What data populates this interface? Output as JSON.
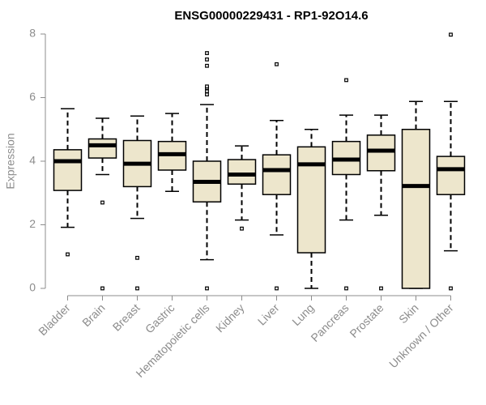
{
  "chart_data": {
    "type": "boxplot",
    "title": "ENSG00000229431 - RP1-92O14.6",
    "xlabel": "",
    "ylabel": "Expression",
    "ylim": [
      0,
      8
    ],
    "yticks": [
      0,
      2,
      4,
      6,
      8
    ],
    "colors": {
      "box_fill": "#ede6cc",
      "stroke": "#000000",
      "axis": "#8c8c8c"
    },
    "categories": [
      "Bladder",
      "Brain",
      "Breast",
      "Gastric",
      "Hematopoietic cells",
      "Kidney",
      "Liver",
      "Lung",
      "Pancreas",
      "Prostate",
      "Skin",
      "Unknown / Other"
    ],
    "boxes": [
      {
        "name": "Bladder",
        "whisker_low": 1.92,
        "q1": 3.08,
        "median": 4.0,
        "q3": 4.36,
        "whisker_high": 5.65,
        "outliers": [
          1.07
        ]
      },
      {
        "name": "Brain",
        "whisker_low": 3.58,
        "q1": 4.1,
        "median": 4.5,
        "q3": 4.7,
        "whisker_high": 5.35,
        "outliers": [
          2.7,
          0.0
        ]
      },
      {
        "name": "Breast",
        "whisker_low": 2.2,
        "q1": 3.2,
        "median": 3.92,
        "q3": 4.65,
        "whisker_high": 5.42,
        "outliers": [
          0.96,
          0.0
        ]
      },
      {
        "name": "Gastric",
        "whisker_low": 3.05,
        "q1": 3.72,
        "median": 4.22,
        "q3": 4.62,
        "whisker_high": 5.5,
        "outliers": []
      },
      {
        "name": "Hematopoietic cells",
        "whisker_low": 0.9,
        "q1": 2.72,
        "median": 3.35,
        "q3": 4.0,
        "whisker_high": 5.78,
        "outliers": [
          0.0,
          6.1,
          6.2,
          6.3,
          6.35,
          7.0,
          7.2,
          7.4
        ]
      },
      {
        "name": "Kidney",
        "whisker_low": 2.15,
        "q1": 3.28,
        "median": 3.58,
        "q3": 4.05,
        "whisker_high": 4.48,
        "outliers": [
          1.88
        ]
      },
      {
        "name": "Liver",
        "whisker_low": 1.68,
        "q1": 2.95,
        "median": 3.72,
        "q3": 4.2,
        "whisker_high": 5.28,
        "outliers": [
          7.05,
          0.0
        ]
      },
      {
        "name": "Lung",
        "whisker_low": 0.0,
        "q1": 1.12,
        "median": 3.9,
        "q3": 4.45,
        "whisker_high": 5.0,
        "outliers": []
      },
      {
        "name": "Pancreas",
        "whisker_low": 2.15,
        "q1": 3.58,
        "median": 4.05,
        "q3": 4.62,
        "whisker_high": 5.45,
        "outliers": [
          6.55,
          0.0
        ]
      },
      {
        "name": "Prostate",
        "whisker_low": 2.3,
        "q1": 3.7,
        "median": 4.33,
        "q3": 4.82,
        "whisker_high": 5.45,
        "outliers": [
          0.0
        ]
      },
      {
        "name": "Skin",
        "whisker_low": 0.0,
        "q1": 0.0,
        "median": 3.22,
        "q3": 5.0,
        "whisker_high": 5.88,
        "outliers": []
      },
      {
        "name": "Unknown / Other",
        "whisker_low": 1.18,
        "q1": 2.95,
        "median": 3.75,
        "q3": 4.15,
        "whisker_high": 5.88,
        "outliers": [
          0.0,
          7.98
        ]
      }
    ]
  }
}
